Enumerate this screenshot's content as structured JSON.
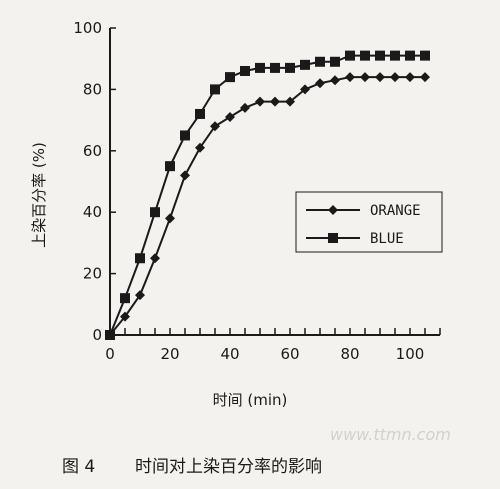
{
  "caption": {
    "number": "图 4",
    "title": "时间对上染百分率的影响"
  },
  "watermark": "www.ttmn.com",
  "chart_data": {
    "type": "line",
    "x": [
      0,
      5,
      10,
      15,
      20,
      25,
      30,
      35,
      40,
      45,
      50,
      55,
      60,
      65,
      70,
      75,
      80,
      85,
      90,
      95,
      100,
      105
    ],
    "series": [
      {
        "name": "ORANGE",
        "marker": "diamond",
        "values": [
          0,
          6,
          13,
          25,
          38,
          52,
          61,
          68,
          71,
          74,
          76,
          76,
          76,
          80,
          82,
          83,
          84,
          84,
          84,
          84,
          84,
          84
        ]
      },
      {
        "name": "BLUE",
        "marker": "square",
        "values": [
          0,
          12,
          25,
          40,
          55,
          65,
          72,
          80,
          84,
          86,
          87,
          87,
          87,
          88,
          89,
          89,
          91,
          91,
          91,
          91,
          91,
          91
        ]
      }
    ],
    "xlabel": "时间 (min)",
    "ylabel": "上染百分率 (%)",
    "xlim": [
      0,
      110
    ],
    "ylim": [
      0,
      100
    ],
    "xticks": [
      0,
      20,
      40,
      60,
      80,
      100
    ],
    "yticks": [
      0,
      20,
      40,
      60,
      80,
      100
    ],
    "grid": false,
    "legend_position": "center-right",
    "colors": {
      "line": "#1a1a1a",
      "background": "#f4f2ee"
    }
  }
}
